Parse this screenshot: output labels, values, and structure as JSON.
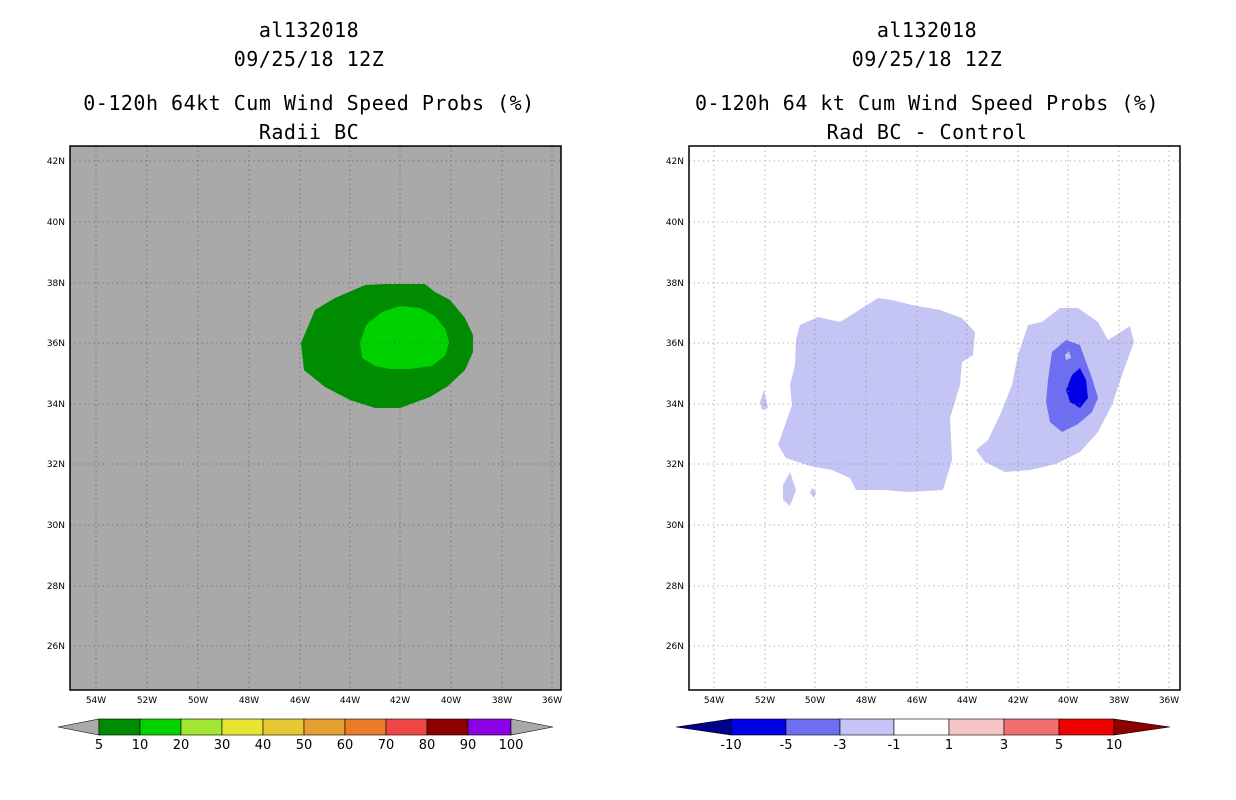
{
  "left_panel": {
    "storm_id": "al132018",
    "datetime": "09/25/18 12Z",
    "product": "0-120h 64kt Cum Wind Speed Probs (%)",
    "subtitle": "Radii BC",
    "lat_labels": [
      "42N",
      "40N",
      "38N",
      "36N",
      "34N",
      "32N",
      "30N",
      "28N",
      "26N"
    ],
    "lon_labels": [
      "54W",
      "52W",
      "50W",
      "48W",
      "46W",
      "44W",
      "42W",
      "40W",
      "38W",
      "36W"
    ],
    "colorbar": {
      "labels": [
        "5",
        "10",
        "20",
        "30",
        "40",
        "50",
        "60",
        "70",
        "80",
        "90",
        "100"
      ],
      "colors": [
        "#008c00",
        "#00d200",
        "#a0e632",
        "#e6e632",
        "#e6c832",
        "#e6a032",
        "#eb7d28",
        "#f04646",
        "#8c0000",
        "#8c00e6"
      ],
      "under_color": "#a9a9a9",
      "over_color": "#a9a9a9"
    }
  },
  "right_panel": {
    "storm_id": "al132018",
    "datetime": "09/25/18 12Z",
    "product": "0-120h 64 kt Cum Wind Speed Probs (%)",
    "subtitle": "Rad BC - Control",
    "lat_labels": [
      "42N",
      "40N",
      "38N",
      "36N",
      "34N",
      "32N",
      "30N",
      "28N",
      "26N"
    ],
    "lon_labels": [
      "54W",
      "52W",
      "50W",
      "48W",
      "46W",
      "44W",
      "42W",
      "40W",
      "38W",
      "36W"
    ],
    "colorbar": {
      "labels": [
        "-10",
        "-5",
        "-3",
        "-1",
        "1",
        "3",
        "5",
        "10"
      ],
      "colors": [
        "#0000e6",
        "#6e6ef0",
        "#c4c4f5",
        "#ffffff",
        "#f5c4c4",
        "#f07070",
        "#f00000"
      ],
      "under_color": "#00008c",
      "over_color": "#8c0000"
    }
  },
  "colors": {
    "map_background": "#a9a9a9",
    "prob_5_10": "#008c00",
    "prob_10_20": "#00d200",
    "diff_light_blue": "#c4c4f5",
    "diff_mid_blue": "#6e6ef0",
    "diff_dark_blue": "#0000e6"
  }
}
